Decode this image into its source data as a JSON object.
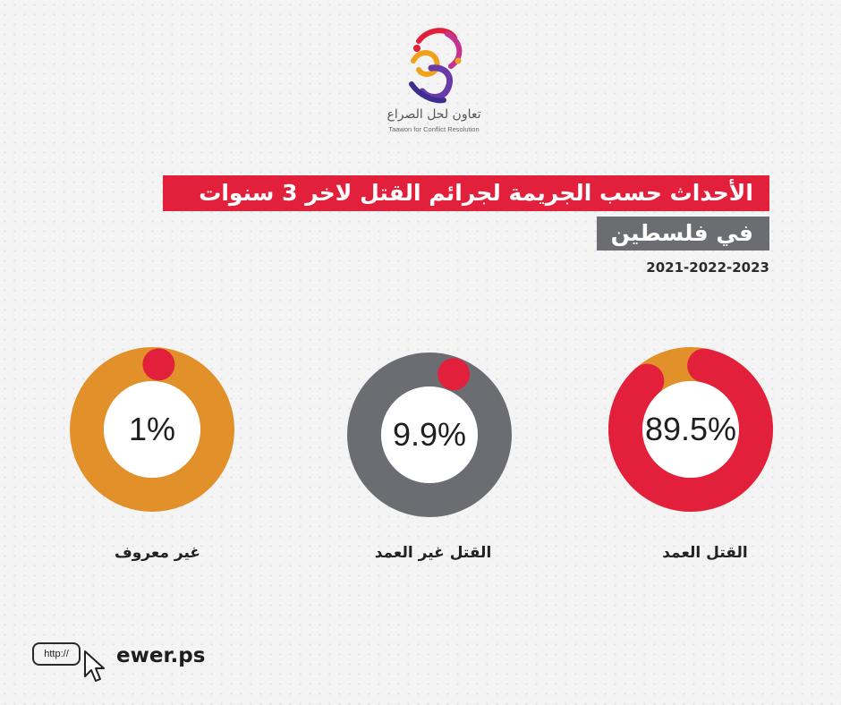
{
  "logo": {
    "arabic": "تعاون لحل الصراع",
    "english": "Taawon for Conflict Resolution"
  },
  "title": {
    "line1": "الأحداث حسب الجريمة لجرائم القتل لاخر 3 سنوات",
    "line2": "في فلسطين"
  },
  "years": "2021-2022-2023",
  "colors": {
    "red": "#e3203b",
    "orange": "#e29029",
    "gray": "#6b6d72"
  },
  "chart_data": {
    "type": "pie",
    "subtype": "donut",
    "categories": [
      "القتل العمد",
      "القتل غير العمد",
      "غير معروف"
    ],
    "values": [
      89.5,
      9.9,
      1
    ],
    "value_labels": [
      "89.5%",
      "9.9%",
      "1%"
    ],
    "unit": "%",
    "ring_colors": [
      "#e3203b",
      "#6b6d72",
      "#e29029"
    ],
    "ring_track_colors": [
      "#e29029",
      "#6b6d72",
      "#e29029"
    ],
    "indicator_color": "#e3203b"
  },
  "footer": {
    "url_prefix": "http://",
    "site": "ewer.ps"
  }
}
